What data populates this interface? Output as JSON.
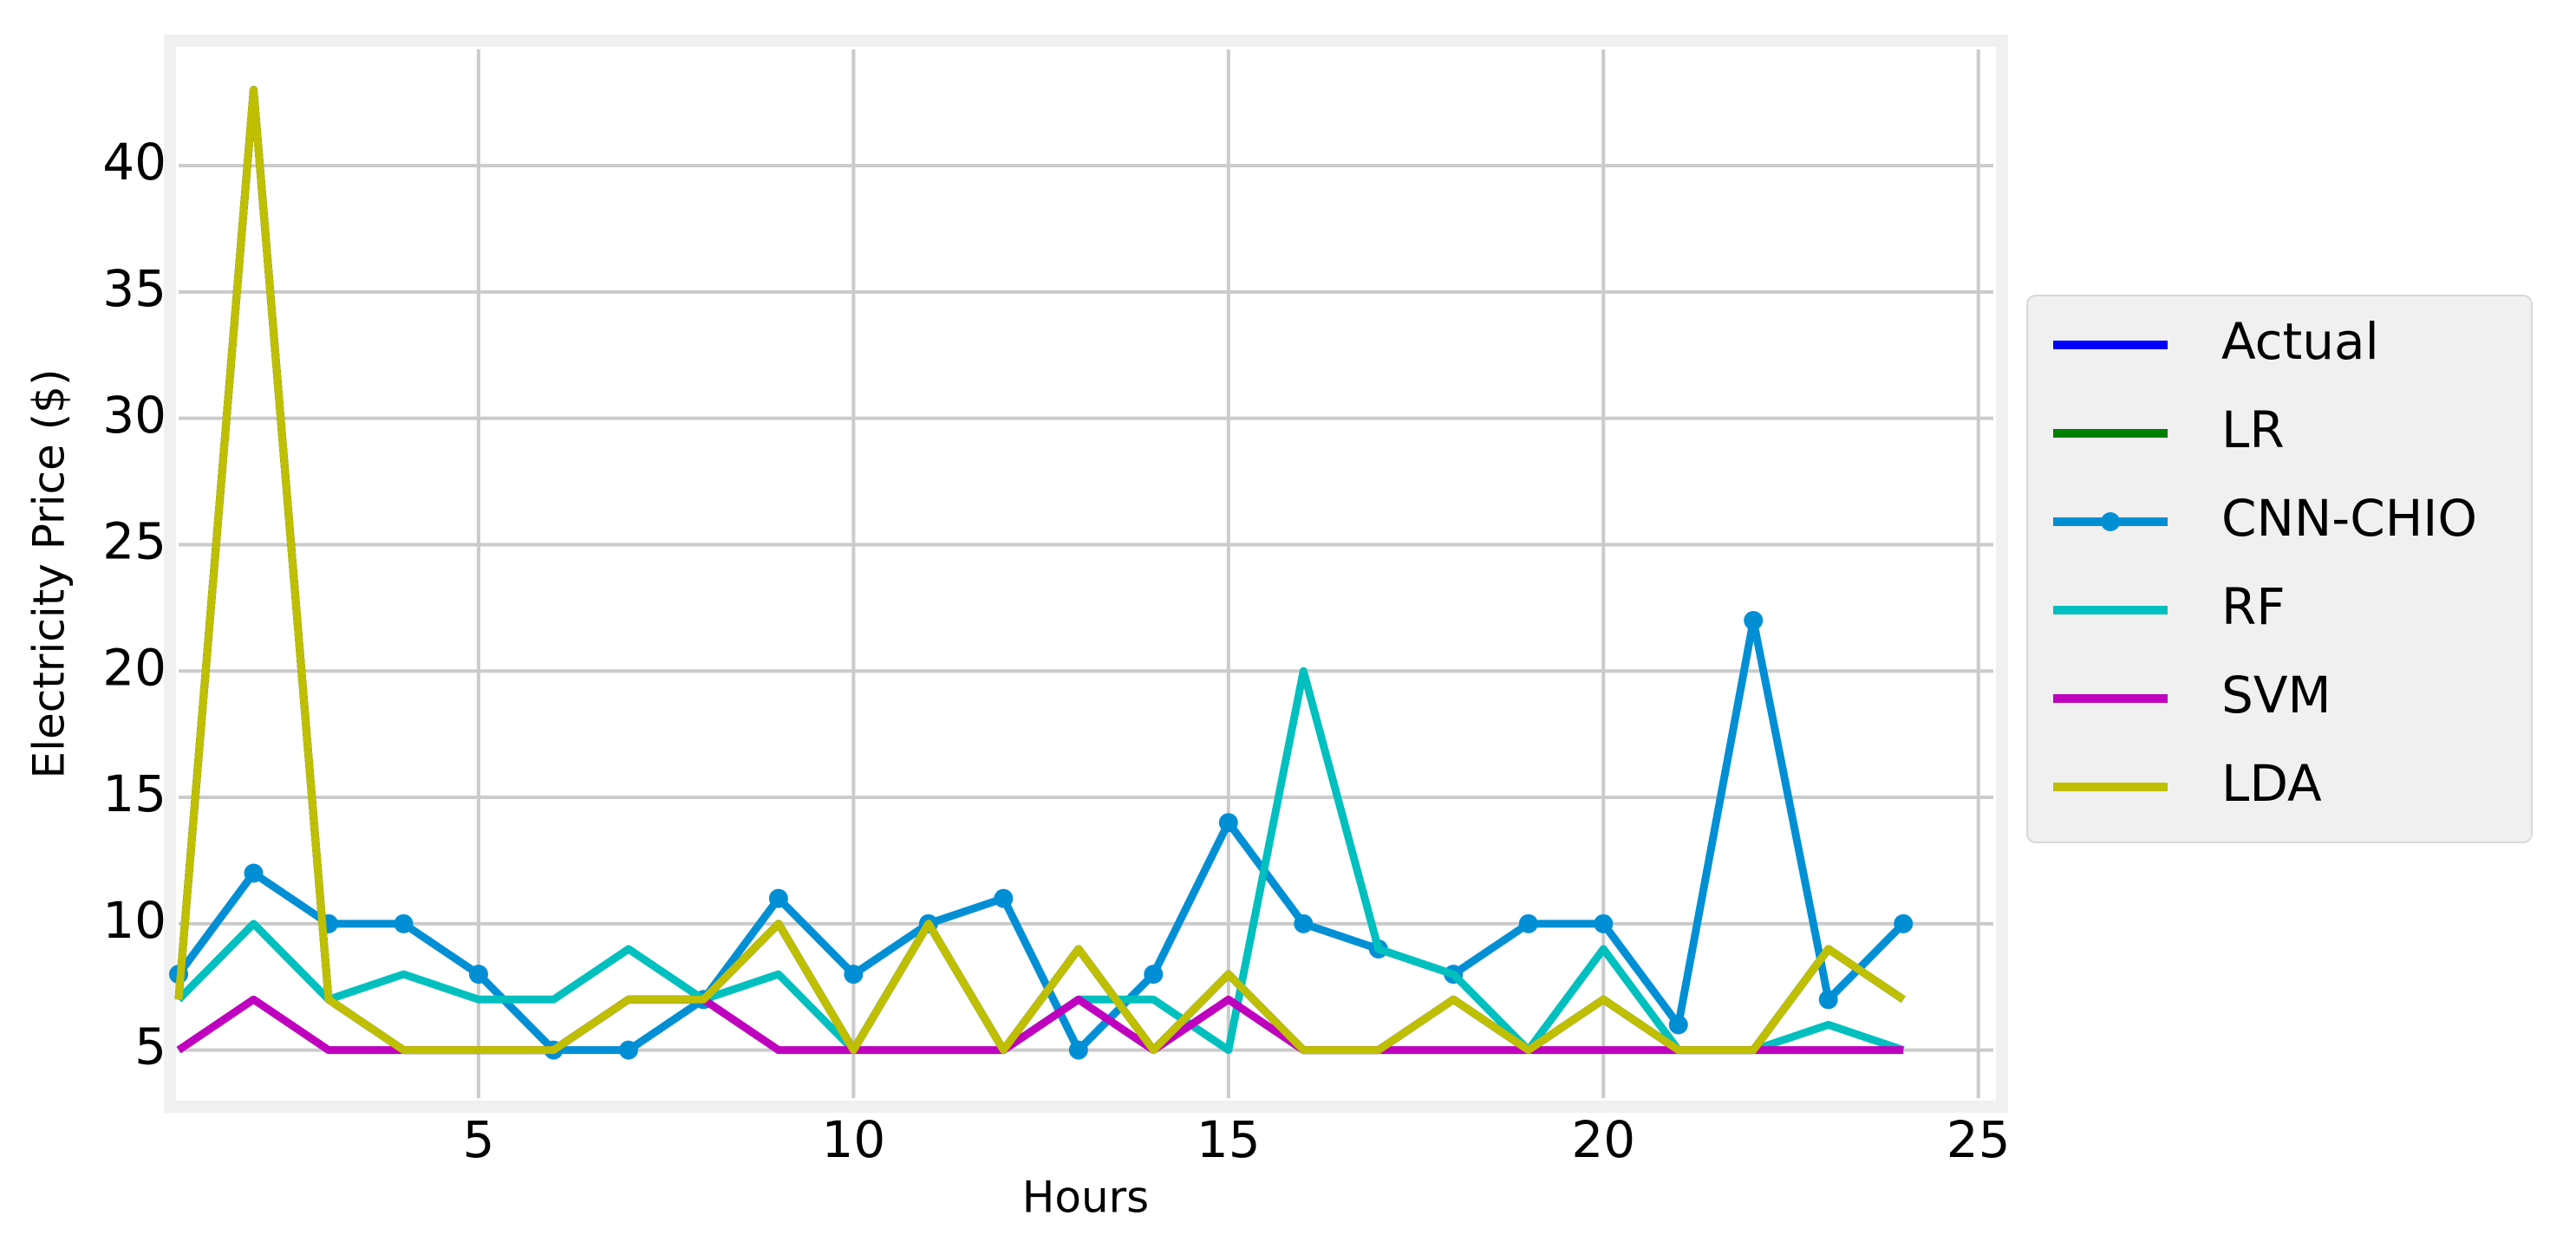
{
  "chart_data": {
    "type": "line",
    "x_label": "Hours",
    "y_label": "Electricity Price ($)",
    "x": [
      1,
      2,
      3,
      4,
      5,
      6,
      7,
      8,
      9,
      10,
      11,
      12,
      13,
      14,
      15,
      16,
      17,
      18,
      19,
      20,
      21,
      22,
      23,
      24
    ],
    "series": [
      {
        "name": "Actual",
        "color": "#0000ff",
        "values": [
          7,
          43,
          7,
          5,
          5,
          5,
          7,
          7,
          10,
          5,
          10,
          5,
          9,
          5,
          8,
          5,
          5,
          7,
          5,
          7,
          5,
          5,
          9,
          7
        ]
      },
      {
        "name": "LR",
        "color": "#008000",
        "values": [
          7,
          43,
          7,
          5,
          5,
          5,
          7,
          7,
          10,
          5,
          10,
          5,
          9,
          5,
          8,
          5,
          5,
          7,
          5,
          7,
          5,
          5,
          9,
          7
        ]
      },
      {
        "name": "CNN-CHIO",
        "color": "#008fd5",
        "marker": true,
        "values": [
          8,
          12,
          10,
          10,
          8,
          5,
          5,
          7,
          11,
          8,
          10,
          11,
          5,
          8,
          14,
          10,
          9,
          8,
          10,
          10,
          6,
          22,
          7,
          10
        ]
      },
      {
        "name": "RF",
        "color": "#00bfbf",
        "values": [
          7,
          10,
          7,
          8,
          7,
          7,
          9,
          7,
          8,
          5,
          10,
          5,
          7,
          7,
          5,
          20,
          9,
          8,
          5,
          9,
          5,
          5,
          6,
          5
        ]
      },
      {
        "name": "SVM",
        "color": "#bf00bf",
        "values": [
          5,
          7,
          5,
          5,
          5,
          5,
          7,
          7,
          5,
          5,
          5,
          5,
          7,
          5,
          7,
          5,
          5,
          5,
          5,
          5,
          5,
          5,
          5,
          5
        ]
      },
      {
        "name": "LDA",
        "color": "#bfbf00",
        "values": [
          7,
          43,
          7,
          5,
          5,
          5,
          7,
          7,
          10,
          5,
          10,
          5,
          9,
          5,
          8,
          5,
          5,
          7,
          5,
          7,
          5,
          5,
          9,
          7
        ]
      }
    ],
    "xlim": [
      1,
      25.2
    ],
    "ylim": [
      3.1,
      44.6
    ],
    "xticks": [
      5,
      10,
      15,
      20,
      25
    ],
    "yticks": [
      5,
      10,
      15,
      20,
      25,
      30,
      35,
      40
    ],
    "grid": true,
    "legend": "right"
  }
}
